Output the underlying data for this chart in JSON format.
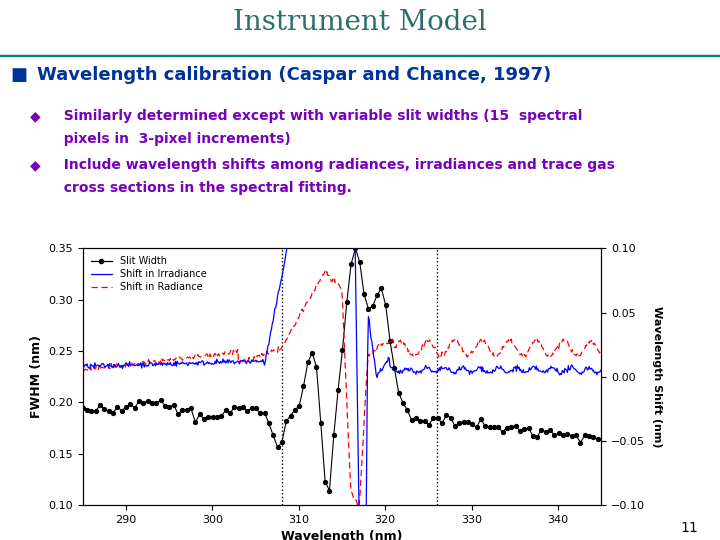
{
  "title": "Instrument Model",
  "title_color": "#2F6E6E",
  "title_fontsize": 20,
  "bullet1_color": "#003399",
  "bullet1_marker": "■",
  "bullet1_text": "Wavelength calibration (Caspar and Chance, 1997)",
  "bullet1_fontsize": 13,
  "sub_bullet_color": "#7700BB",
  "sub_bullet_marker": "◆",
  "sub_bullet1_line1": "  Similarly determined except with variable slit widths (15  spectral",
  "sub_bullet1_line2": "  pixels in  3-pixel increments)",
  "sub_bullet2_line1": "  Include wavelength shifts among radiances, irradiances and trace gas",
  "sub_bullet2_line2": "  cross sections in the spectral fitting.",
  "sub_bullet_fontsize": 10,
  "bg_color": "#FFFFFF",
  "slide_bg": "#E8F4FA",
  "header_line_color": "#008080",
  "page_number": "11",
  "xlabel": "Wavelength (nm)",
  "ylabel_left": "FWHM (nm)",
  "ylabel_right": "Wavelength Shift (nm)",
  "xlim": [
    285,
    345
  ],
  "ylim_left": [
    0.1,
    0.35
  ],
  "ylim_right": [
    -0.1,
    0.1
  ],
  "xticks": [
    290,
    300,
    310,
    320,
    330,
    340
  ],
  "yticks_left": [
    0.1,
    0.15,
    0.2,
    0.25,
    0.3,
    0.35
  ],
  "yticks_right": [
    -0.1,
    -0.05,
    0.0,
    0.05,
    0.1
  ],
  "vline1": 308,
  "vline2": 326,
  "legend_slit": "Slit Width",
  "legend_irr": "Shift in Irradiance",
  "legend_rad": "Shift in Radiance",
  "plot_bg": "#FFFFFF"
}
